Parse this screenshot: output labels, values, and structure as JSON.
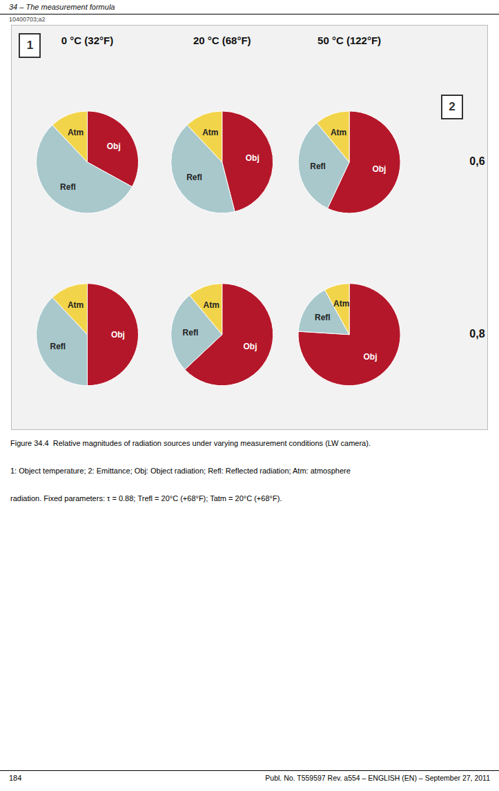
{
  "chart_data": [
    {
      "type": "pie",
      "title": "0 °C (32°F)",
      "categories": [
        "Obj",
        "Refl",
        "Atm"
      ],
      "values": [
        33,
        55,
        12
      ],
      "colors": [
        "#B5172A",
        "#A8C8CC",
        "#F2D44A"
      ]
    },
    {
      "type": "pie",
      "title": "20 °C (68°F)",
      "categories": [
        "Obj",
        "Refl",
        "Atm"
      ],
      "values": [
        46,
        42,
        12
      ],
      "colors": [
        "#B5172A",
        "#A8C8CC",
        "#F2D44A"
      ]
    },
    {
      "type": "pie",
      "title": "50 °C (122°F)",
      "categories": [
        "Obj",
        "Refl",
        "Atm"
      ],
      "values": [
        57,
        32,
        11
      ],
      "colors": [
        "#B5172A",
        "#A8C8CC",
        "#F2D44A"
      ]
    },
    {
      "type": "pie",
      "categories": [
        "Obj",
        "Refl",
        "Atm"
      ],
      "values": [
        50,
        38,
        12
      ],
      "colors": [
        "#B5172A",
        "#A8C8CC",
        "#F2D44A"
      ]
    },
    {
      "type": "pie",
      "categories": [
        "Obj",
        "Refl",
        "Atm"
      ],
      "values": [
        63,
        26,
        11
      ],
      "colors": [
        "#B5172A",
        "#A8C8CC",
        "#F2D44A"
      ]
    },
    {
      "type": "pie",
      "categories": [
        "Obj",
        "Refl",
        "Atm"
      ],
      "values": [
        76,
        16,
        8
      ],
      "colors": [
        "#B5172A",
        "#A8C8CC",
        "#F2D44A"
      ]
    }
  ],
  "annotations": [
    "34 – The measurement formula",
    "10400703;a2",
    "1",
    "2",
    "0,6",
    "0,8",
    "Figure 34.4  Relative magnitudes of radiation sources under varying measurement conditions (LW camera).",
    "1: Object temperature; 2: Emittance; Obj: Object radiation; Refl: Reflected radiation; Atm: atmosphere",
    "radiation. Fixed parameters: τ = 0.88; Trefl = 20°C (+68°F); Tatm = 20°C (+68°F).",
    "184",
    "Publ. No. T559597 Rev. a554 – ENGLISH (EN) – September 27, 2011"
  ]
}
